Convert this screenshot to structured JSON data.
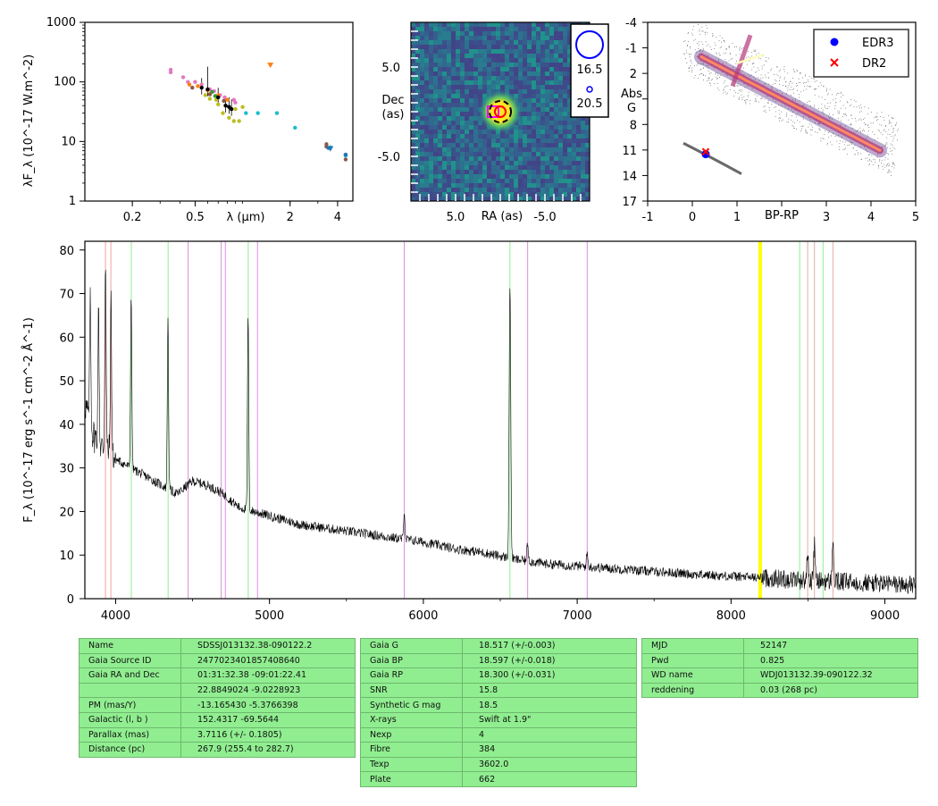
{
  "chart_data": [
    {
      "type": "scatter",
      "title": "",
      "xlabel": "λ (μm)",
      "ylabel": "λF_λ (10^-17 W.m^-2)",
      "xscale": "log",
      "yscale": "log",
      "xlim": [
        0.1,
        5
      ],
      "ylim": [
        1,
        1000
      ],
      "x_ticks": [
        "0.2",
        "0.5",
        "2",
        "4"
      ],
      "x_tick_values": [
        0.2,
        0.5,
        2,
        4
      ],
      "y_ticks": [
        "1",
        "10",
        "100",
        "1000"
      ],
      "y_tick_values": [
        1,
        10,
        100,
        1000
      ],
      "series": [
        {
          "color": "#e377c2",
          "points": [
            [
              0.35,
              160
            ],
            [
              0.35,
              145
            ],
            [
              0.42,
              120
            ],
            [
              0.45,
              100
            ],
            [
              0.5,
              100
            ],
            [
              0.55,
              90
            ],
            [
              0.62,
              75
            ],
            [
              0.66,
              70
            ],
            [
              0.72,
              60
            ],
            [
              0.77,
              55
            ],
            [
              0.88,
              50
            ],
            [
              0.9,
              45
            ]
          ]
        },
        {
          "color": "#ff7f0e",
          "points": [
            [
              0.46,
              90
            ],
            [
              0.52,
              85
            ],
            [
              0.6,
              72
            ],
            [
              0.7,
              60
            ],
            [
              0.8,
              50
            ]
          ]
        },
        {
          "color": "#bcbd22",
          "points": [
            [
              0.58,
              60
            ],
            [
              0.62,
              52
            ],
            [
              0.7,
              42
            ],
            [
              0.75,
              30
            ],
            [
              0.82,
              25
            ],
            [
              0.88,
              22
            ],
            [
              0.95,
              22
            ],
            [
              0.9,
              35
            ],
            [
              1.0,
              38
            ],
            [
              0.68,
              50
            ]
          ]
        },
        {
          "color": "#2ca02c",
          "points": [
            [
              0.64,
              68
            ],
            [
              0.67,
              58
            ]
          ]
        },
        {
          "color": "#8c564b",
          "points": [
            [
              0.48,
              80
            ],
            [
              0.62,
              62
            ],
            [
              0.76,
              48
            ],
            [
              3.4,
              9
            ],
            [
              3.4,
              8.2
            ],
            [
              4.5,
              6
            ],
            [
              4.5,
              5
            ]
          ]
        },
        {
          "color": "#17becf",
          "points": [
            [
              1.05,
              30
            ],
            [
              1.25,
              30
            ],
            [
              1.65,
              30
            ],
            [
              2.15,
              17
            ],
            [
              3.6,
              8
            ],
            [
              4.5,
              5.8
            ]
          ]
        },
        {
          "color": "#1f77b4",
          "points": [
            [
              4.5,
              6
            ],
            [
              3.5,
              7.8
            ]
          ]
        },
        {
          "color": "#000000",
          "points": [
            [
              0.55,
              80
            ],
            [
              0.6,
              75
            ],
            [
              0.7,
              55
            ],
            [
              0.78,
              40
            ],
            [
              0.82,
              38
            ],
            [
              0.85,
              35
            ]
          ]
        }
      ],
      "upper_limits": [
        {
          "color": "#ff7f0e",
          "point": [
            1.5,
            190
          ]
        },
        {
          "color": "#1f77b4",
          "point": [
            3.6,
            7.5
          ]
        }
      ]
    },
    {
      "type": "heatmap",
      "xlabel": "RA (as)",
      "ylabel": "Dec (as)",
      "xlim": [
        10,
        -10
      ],
      "ylim": [
        -10,
        10
      ],
      "x_ticks": [
        "5.0",
        "-5.0"
      ],
      "x_tick_values": [
        5,
        -5
      ],
      "y_ticks": [
        "5.0",
        "-5.0"
      ],
      "y_tick_values": [
        5,
        -5
      ],
      "source_center": [
        0,
        0
      ],
      "markers": [
        {
          "kind": "magenta-square",
          "at": [
            0.8,
            0
          ]
        },
        {
          "kind": "red-circle",
          "at": [
            0,
            0
          ]
        },
        {
          "kind": "black-dashed-circle",
          "at": [
            0,
            0
          ]
        }
      ],
      "legend": [
        "16.5",
        "20.5"
      ]
    },
    {
      "type": "scatter",
      "xlabel": "BP-RP",
      "ylabel": "Abs G",
      "xlim": [
        -1,
        5
      ],
      "ylim": [
        17,
        -4
      ],
      "x_ticks": [
        "-1",
        "0",
        "1",
        "2",
        "3",
        "4",
        "5"
      ],
      "x_tick_values": [
        -1,
        0,
        1,
        2,
        3,
        4,
        5
      ],
      "y_ticks": [
        "-4",
        "-1",
        "2",
        "5",
        "8",
        "11",
        "14",
        "17"
      ],
      "y_tick_values": [
        -4,
        -1,
        2,
        5,
        8,
        11,
        14,
        17
      ],
      "legend": [
        "EDR3",
        "DR2"
      ],
      "legend_position": "top-right",
      "target": {
        "EDR3": [
          0.3,
          11.5
        ],
        "DR2": [
          0.3,
          11.2
        ]
      }
    },
    {
      "type": "line",
      "xlabel": "",
      "ylabel": "F_λ (10^-17 erg s^-1 cm^-2 Å^-1)",
      "xlim": [
        3800,
        9200
      ],
      "ylim": [
        0,
        82
      ],
      "x_ticks": [
        "4000",
        "5000",
        "6000",
        "7000",
        "8000",
        "9000"
      ],
      "x_tick_values": [
        4000,
        5000,
        6000,
        7000,
        8000,
        9000
      ],
      "y_ticks": [
        "0",
        "10",
        "20",
        "30",
        "40",
        "50",
        "60",
        "70",
        "80"
      ],
      "y_tick_values": [
        0,
        10,
        20,
        30,
        40,
        50,
        60,
        70,
        80
      ],
      "continuum": [
        [
          3800,
          45
        ],
        [
          3850,
          38
        ],
        [
          3900,
          35
        ],
        [
          3950,
          34
        ],
        [
          4000,
          32
        ],
        [
          4100,
          30
        ],
        [
          4200,
          28
        ],
        [
          4300,
          26
        ],
        [
          4400,
          24
        ],
        [
          4500,
          27
        ],
        [
          4600,
          26
        ],
        [
          4700,
          24
        ],
        [
          4800,
          21
        ],
        [
          4900,
          20
        ],
        [
          5000,
          19
        ],
        [
          5200,
          17
        ],
        [
          5400,
          16
        ],
        [
          5600,
          15
        ],
        [
          5800,
          14
        ],
        [
          6000,
          13
        ],
        [
          6200,
          11.5
        ],
        [
          6400,
          10.5
        ],
        [
          6600,
          9
        ],
        [
          6800,
          8
        ],
        [
          7000,
          7.5
        ],
        [
          7400,
          6.5
        ],
        [
          7800,
          5.5
        ],
        [
          8200,
          4.8
        ],
        [
          8600,
          4
        ],
        [
          9000,
          3.5
        ],
        [
          9200,
          3
        ]
      ],
      "emission_lines": [
        [
          3835,
          28
        ],
        [
          3889,
          30
        ],
        [
          3934,
          45
        ],
        [
          3970,
          35
        ],
        [
          4101,
          40
        ],
        [
          4340,
          40
        ],
        [
          4861,
          45
        ],
        [
          5876,
          7
        ],
        [
          6563,
          63
        ],
        [
          6678,
          4
        ],
        [
          7065,
          3
        ],
        [
          8498,
          6
        ],
        [
          8542,
          8
        ],
        [
          8662,
          9
        ]
      ],
      "reference_lines": [
        {
          "color": "#f4a0a0",
          "x": [
            3934,
            3969
          ]
        },
        {
          "color": "#90ee90",
          "x": [
            4102,
            4341,
            4862,
            6563,
            8446,
            8598
          ]
        },
        {
          "color": "#da8fdc",
          "x": [
            4471,
            4686,
            4713,
            4922,
            5876,
            6678,
            7065
          ]
        },
        {
          "color": "#e0b0a0",
          "x": [
            8498,
            8542,
            8662
          ]
        },
        {
          "color": "#ffff00",
          "x": [
            8183,
            8195
          ]
        }
      ]
    }
  ],
  "tables": [
    [
      [
        "Name",
        "SDSSJ013132.38-090122.2"
      ],
      [
        "Gaia Source ID",
        "2477023401857408640"
      ],
      [
        "Gaia RA and Dec",
        "01:31:32.38    -09:01:22.41"
      ],
      [
        "",
        "22.8849024    -9.0228923"
      ],
      [
        "PM (mas/Y)",
        "-13.165430    -5.3766398"
      ],
      [
        "Galactic (l, b )",
        "152.4317    -69.5644"
      ],
      [
        "Parallax (mas)",
        "3.7116 (+/- 0.1805)"
      ],
      [
        "Distance (pc)",
        "267.9 (255.4 to 282.7)"
      ]
    ],
    [
      [
        "Gaia G",
        "18.517 (+/-0.003)"
      ],
      [
        "Gaia BP",
        "18.597 (+/-0.018)"
      ],
      [
        "Gaia RP",
        "18.300 (+/-0.031)"
      ],
      [
        "SNR",
        "15.8"
      ],
      [
        "Synthetic G mag",
        "18.5"
      ],
      [
        "X-rays",
        "Swift at 1.9\""
      ],
      [
        "Nexp",
        "4"
      ],
      [
        "Fibre",
        "384"
      ],
      [
        "Texp",
        "3602.0"
      ],
      [
        "Plate",
        "662"
      ]
    ],
    [
      [
        "MJD",
        "52147"
      ],
      [
        "Pwd",
        "0.825"
      ],
      [
        "WD name",
        "WDJ013132.39-090122.32"
      ],
      [
        "reddening",
        "0.03 (268 pc)"
      ]
    ]
  ],
  "colors": {
    "table_bg": "#90ee90",
    "edr3": "#0000ff",
    "dr2": "#ff0000"
  }
}
